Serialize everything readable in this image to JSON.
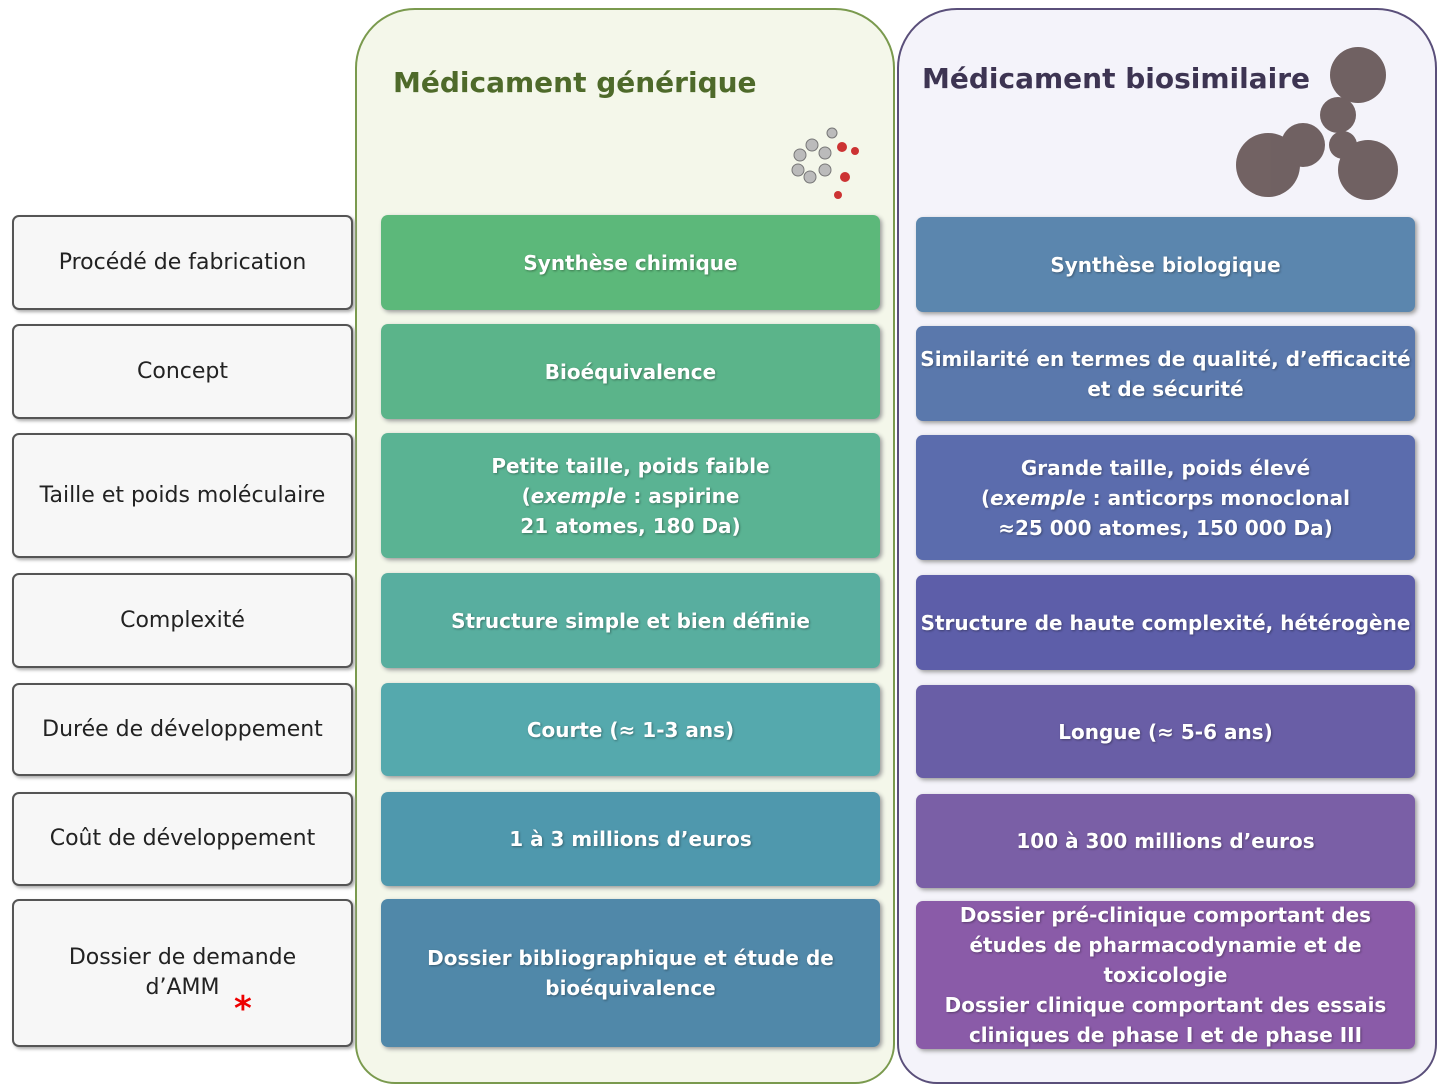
{
  "columns": [
    {
      "title": "Médicament générique"
    },
    {
      "title": "Médicament biosimilaire"
    }
  ],
  "rows": [
    {
      "label": [
        "Procédé de fabrication"
      ],
      "generic": [
        "Synthèse chimique"
      ],
      "biosimilar": [
        "Synthèse biologique"
      ]
    },
    {
      "label": [
        "Concept"
      ],
      "generic": [
        "Bioéquivalence"
      ],
      "biosimilar": [
        "Similarité en termes de qualité, d’efficacité",
        "et de sécurité"
      ]
    },
    {
      "label": [
        "Taille et poids moléculaire"
      ],
      "generic": [
        "Petite taille, poids faible",
        {
          "before": "(",
          "italic": "exemple",
          "after": " : aspirine"
        },
        "21 atomes, 180 Da)"
      ],
      "biosimilar": [
        "Grande taille, poids élevé",
        {
          "before": "(",
          "italic": "exemple",
          "after": " : anticorps monoclonal"
        },
        "≈25 000 atomes, 150 000 Da)"
      ]
    },
    {
      "label": [
        "Complexité"
      ],
      "generic": [
        "Structure simple et bien définie"
      ],
      "biosimilar": [
        "Structure de haute complexité, hétérogène"
      ]
    },
    {
      "label": [
        "Durée de développement"
      ],
      "generic": [
        "Courte (≈ 1-3 ans)"
      ],
      "biosimilar": [
        "Longue (≈ 5-6 ans)"
      ]
    },
    {
      "label": [
        "Coût de développement"
      ],
      "generic": [
        "1 à 3 millions d’euros"
      ],
      "biosimilar": [
        "100 à 300 millions d’euros"
      ]
    },
    {
      "label": [
        "Dossier de demande",
        "d’AMM"
      ],
      "marker": "*",
      "generic": [
        "Dossier bibliographique et étude de",
        "bioéquivalence"
      ],
      "biosimilar": [
        "Dossier pré-clinique comportant des",
        "études de pharmacodynamie et de",
        "toxicologie",
        "Dossier clinique comportant des essais",
        "cliniques de phase I et de phase III"
      ]
    }
  ]
}
